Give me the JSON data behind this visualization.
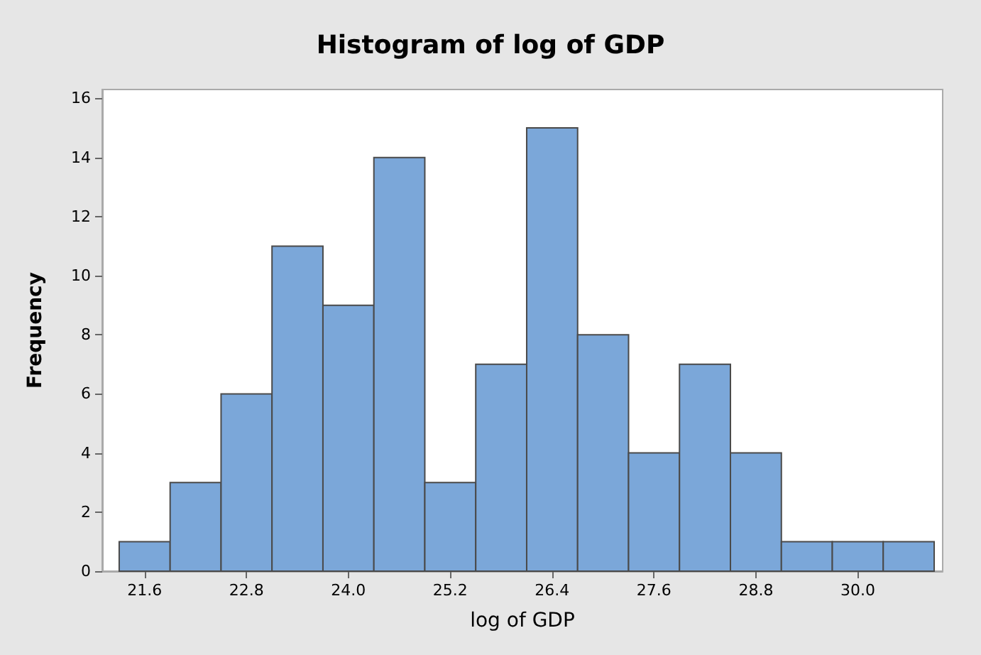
{
  "chart_data": {
    "type": "histogram",
    "title": "Histogram of log of GDP",
    "xlabel": "log of GDP",
    "ylabel": "Frequency",
    "bins": [
      21.3,
      21.9,
      22.5,
      23.1,
      23.7,
      24.3,
      24.9,
      25.5,
      26.1,
      26.7,
      27.3,
      27.9,
      28.5,
      29.1,
      29.7,
      30.3,
      30.9
    ],
    "values": [
      1,
      3,
      6,
      11,
      9,
      14,
      3,
      7,
      15,
      8,
      4,
      7,
      4,
      1,
      1,
      1
    ],
    "color": "#7ba7d9",
    "xlim": [
      21.1,
      31.0
    ],
    "xticks": [
      {
        "value": 21.6,
        "label": "21.6"
      },
      {
        "value": 22.8,
        "label": "22.8"
      },
      {
        "value": 24,
        "label": "24.0"
      },
      {
        "value": 25.2,
        "label": "25.2"
      },
      {
        "value": 26.4,
        "label": "26.4"
      },
      {
        "value": 27.6,
        "label": "27.6"
      },
      {
        "value": 28.8,
        "label": "28.8"
      },
      {
        "value": 30,
        "label": "30.0"
      }
    ],
    "ylim": [
      0,
      16.3
    ],
    "yticks": [
      0,
      2,
      4,
      6,
      8,
      10,
      12,
      14,
      16
    ],
    "grid": false
  }
}
